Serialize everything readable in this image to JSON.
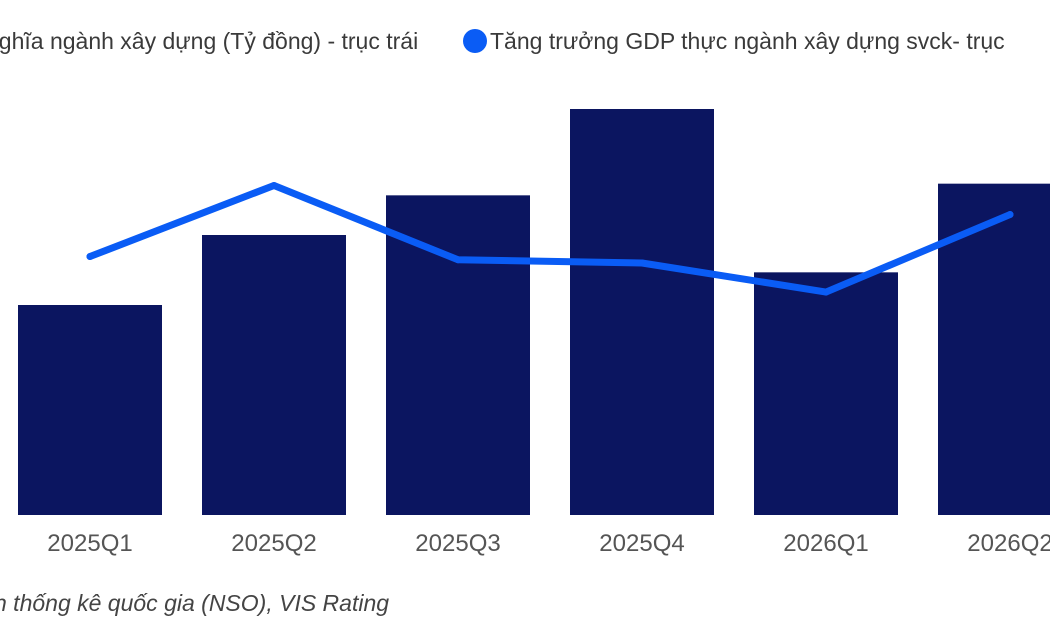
{
  "chart_data": {
    "type": "bar",
    "categories": [
      "2025Q1",
      "2025Q2",
      "2025Q3",
      "2025Q4",
      "2026Q1",
      "2026Q2"
    ],
    "series": [
      {
        "name": "nghĩa ngành xây dựng (Tỷ đồng) - trục trái",
        "type": "bar",
        "axis": "left",
        "color": "#0b1560",
        "values": [
          45,
          60,
          68.5,
          87,
          52,
          71
        ]
      },
      {
        "name": "Tăng trưởng GDP thực ngành xây dựng svck- trục",
        "type": "line",
        "axis": "right",
        "color": "#0a5cf5",
        "values": [
          8.0,
          10.2,
          7.9,
          7.8,
          6.9,
          9.3
        ]
      }
    ],
    "ylim_left": [
      0,
      90
    ],
    "ylim_right": [
      0,
      13
    ],
    "grid": false,
    "legend_position": "top"
  },
  "source_note": "n thống kê quốc gia (NSO), VIS Rating"
}
